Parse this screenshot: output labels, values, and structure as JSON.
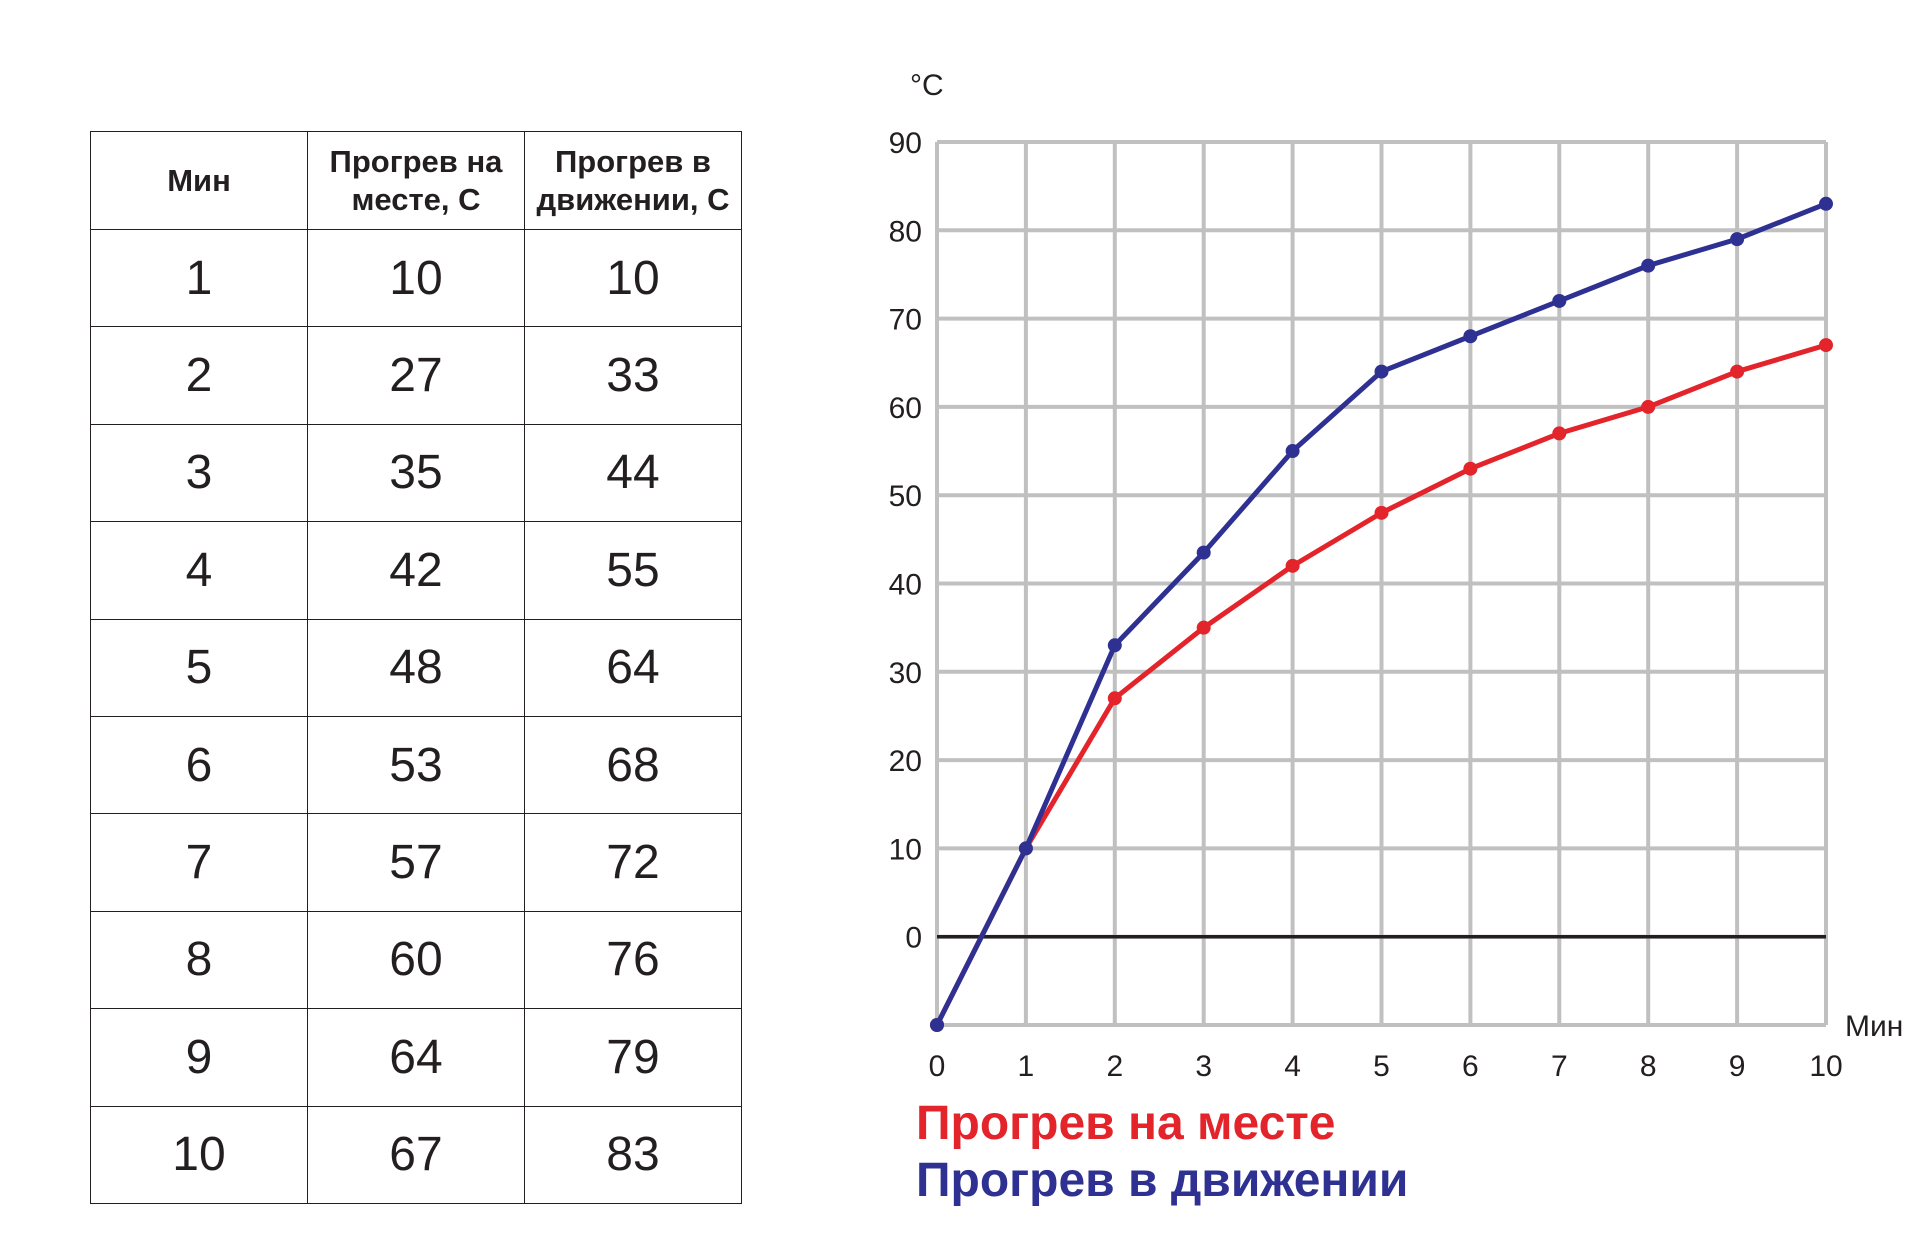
{
  "table": {
    "headers": [
      "Мин",
      "Прогрев на\nместе, С",
      "Прогрев в\nдвижении, С"
    ],
    "rows": [
      [
        "1",
        "10",
        "10"
      ],
      [
        "2",
        "27",
        "33"
      ],
      [
        "3",
        "35",
        "44"
      ],
      [
        "4",
        "42",
        "55"
      ],
      [
        "5",
        "48",
        "64"
      ],
      [
        "6",
        "53",
        "68"
      ],
      [
        "7",
        "57",
        "72"
      ],
      [
        "8",
        "60",
        "76"
      ],
      [
        "9",
        "64",
        "79"
      ],
      [
        "10",
        "67",
        "83"
      ]
    ]
  },
  "chart_data": {
    "type": "line",
    "x": [
      0,
      1,
      2,
      3,
      4,
      5,
      6,
      7,
      8,
      9,
      10
    ],
    "series": [
      {
        "name": "Прогрев на месте",
        "color": "#e3242b",
        "values": [
          -10,
          10,
          27,
          35,
          42,
          48,
          53,
          57,
          60,
          64,
          67
        ]
      },
      {
        "name": "Прогрев в движении",
        "color": "#2e3192",
        "values": [
          -10,
          10,
          33,
          43.5,
          55,
          64,
          68,
          72,
          76,
          79,
          83
        ]
      }
    ],
    "xlabel": "Мин",
    "ylabel": "°С",
    "xlim": [
      0,
      10
    ],
    "ylim": [
      -10,
      90
    ],
    "xticks": [
      "0",
      "1",
      "2",
      "3",
      "4",
      "5",
      "6",
      "7",
      "8",
      "9",
      "10"
    ],
    "yticks": [
      "0",
      "10",
      "20",
      "30",
      "40",
      "50",
      "60",
      "70",
      "80",
      "90"
    ],
    "grid": true,
    "grid_color": "#c0c0c0",
    "legend_position": "bottom-left"
  }
}
